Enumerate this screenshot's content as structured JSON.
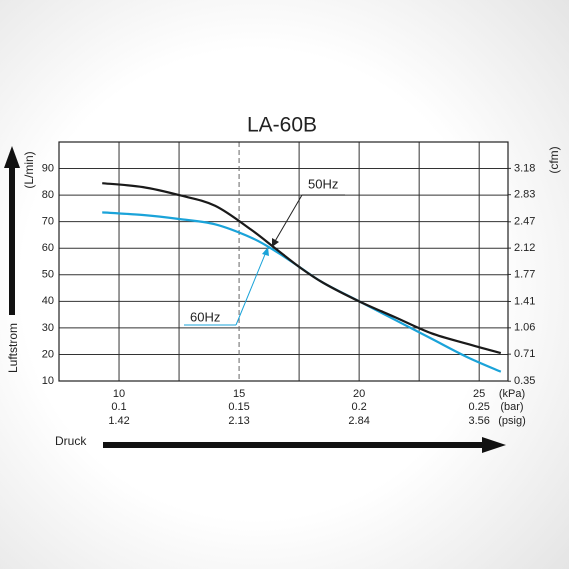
{
  "chart_data": {
    "type": "line",
    "title": "LA-60B",
    "y_label": "Luftstrom",
    "y_unit": "(L/min)",
    "y2_unit": "(cfm)",
    "x_label": "Druck",
    "x": [
      9.3,
      11,
      12.5,
      14,
      15.5,
      16.5,
      17.5,
      18.5,
      20,
      21.5,
      23,
      24.5,
      25.9
    ],
    "series": [
      {
        "name": "50Hz",
        "color": "#1a1a1a",
        "values": [
          84.5,
          83,
          80,
          76,
          67,
          60,
          53,
          47,
          40,
          34,
          28,
          24,
          20.5
        ]
      },
      {
        "name": "60Hz",
        "color": "#1aa3d9",
        "values": [
          73.5,
          72.5,
          71,
          69,
          64,
          59,
          53,
          47,
          40,
          33,
          26,
          19,
          13.5
        ]
      }
    ],
    "xlim": [
      7.5,
      26.2
    ],
    "xticks": [
      10,
      15,
      20,
      25
    ],
    "x_unit": "(kPa)",
    "x_bar_labels": [
      "0.1",
      "0.15",
      "0.2",
      "0.25"
    ],
    "x_bar_unit": "(bar)",
    "x_psig_labels": [
      "1.42",
      "2.13",
      "2.84",
      "3.56"
    ],
    "x_psig_unit": "(psig)",
    "x_gridlines": [
      12.5,
      17.5,
      22.5
    ],
    "dashed_gridline": 15,
    "ylim": [
      10,
      100
    ],
    "yticks": [
      10,
      20,
      30,
      40,
      50,
      60,
      70,
      80,
      90
    ],
    "y2lim": [
      0.353,
      3.531
    ],
    "y2ticks": [
      0.35,
      0.71,
      1.06,
      1.41,
      1.77,
      2.12,
      2.47,
      2.83,
      3.18
    ],
    "grid": true
  }
}
